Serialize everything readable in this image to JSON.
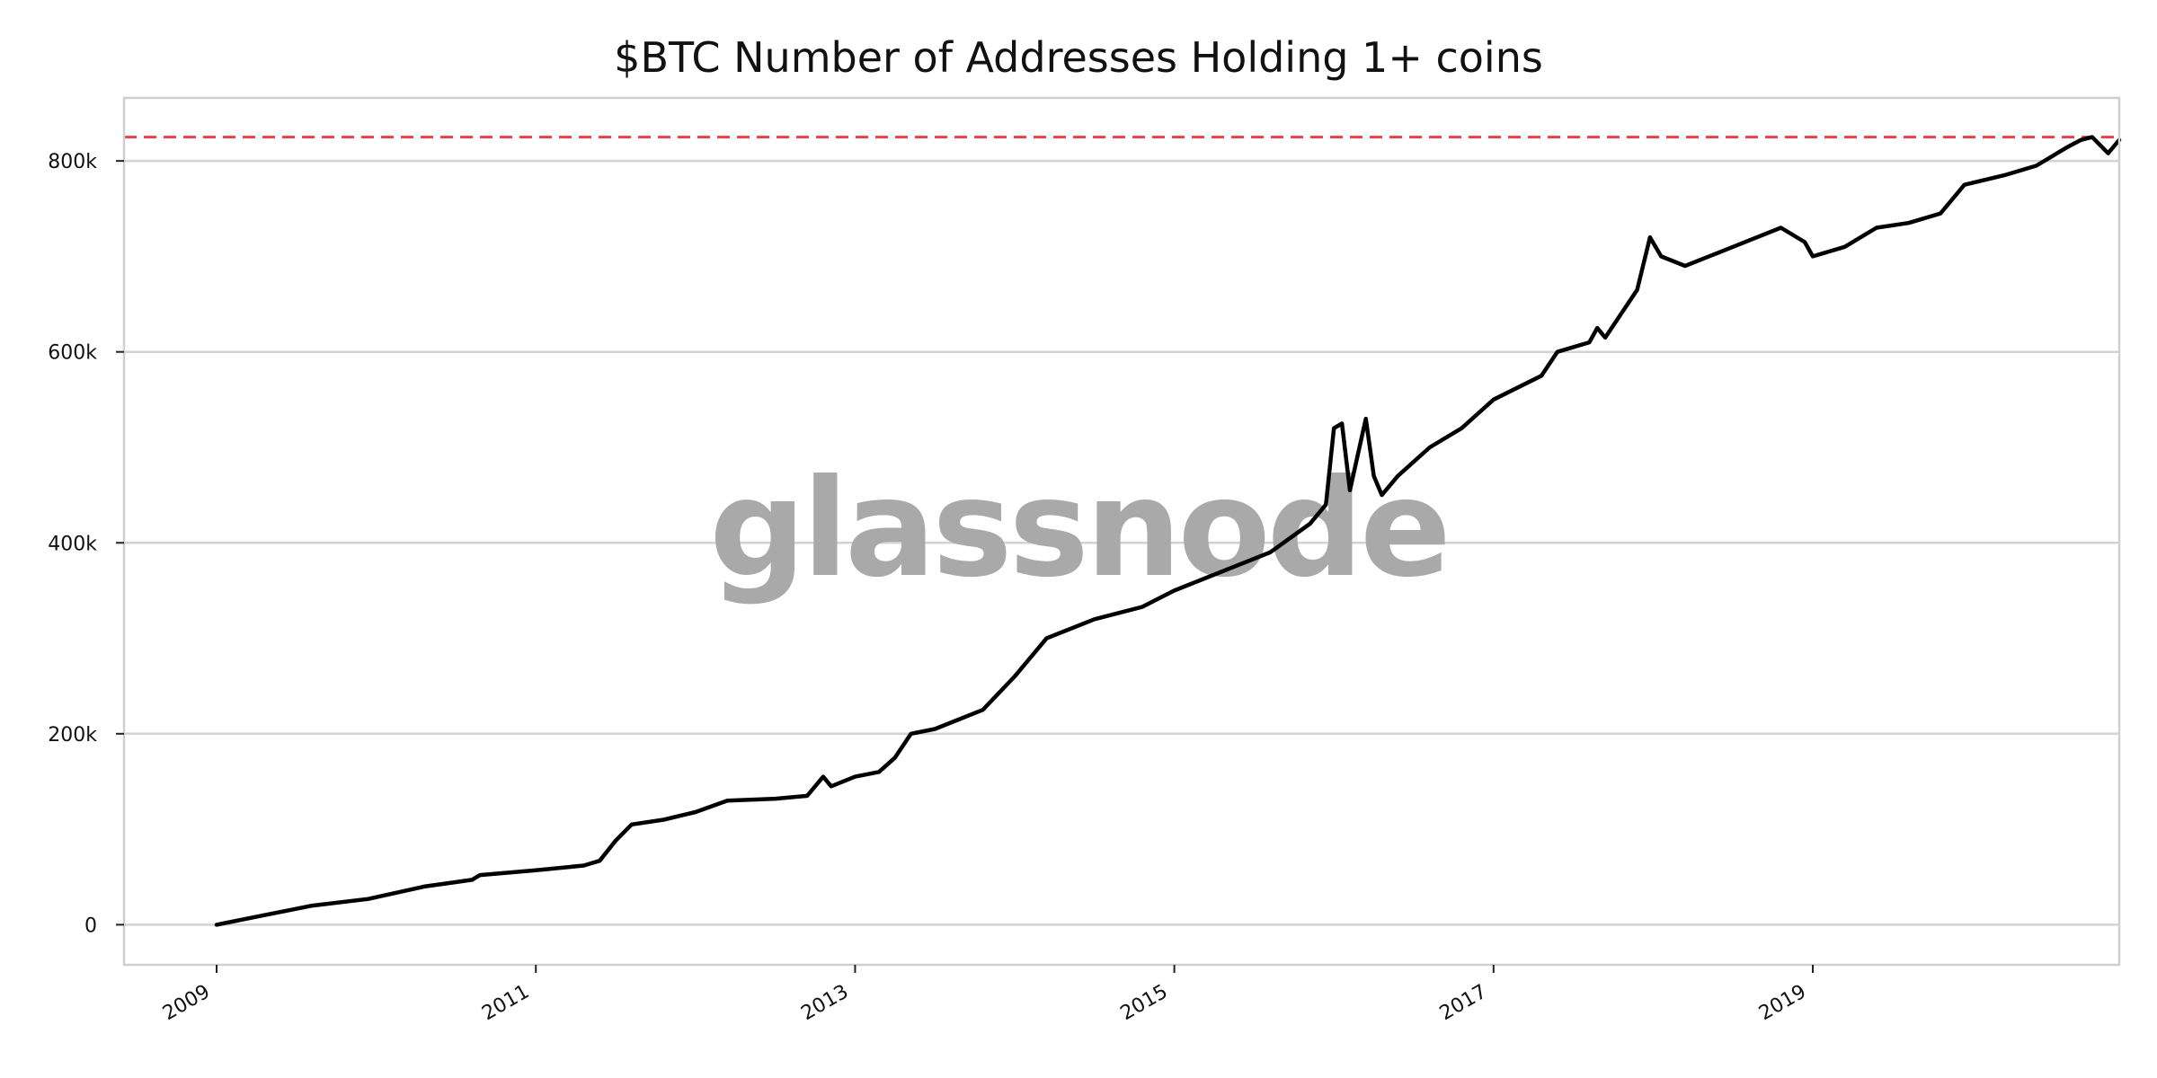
{
  "chart_data": {
    "type": "line",
    "title": "$BTC Number of Addresses Holding 1+ coins",
    "watermark": "glassnode",
    "xlabel": "",
    "ylabel": "",
    "x_ticks": [
      "2009",
      "2011",
      "2013",
      "2015",
      "2017",
      "2019"
    ],
    "y_ticks": [
      "0",
      "200k",
      "400k",
      "600k",
      "800k"
    ],
    "y_tick_values": [
      0,
      200000,
      400000,
      600000,
      800000
    ],
    "xlim": [
      2008.42,
      2020.92
    ],
    "ylim": [
      -42000,
      866000
    ],
    "grid": "horizontal",
    "line_color": "#000000",
    "reference_line": {
      "value": 825000,
      "color": "#e8414e",
      "style": "dashed"
    },
    "series": [
      {
        "x": [
          2009.0,
          2009.3,
          2009.6,
          2009.95,
          2010.3,
          2010.6,
          2010.65,
          2011.0,
          2011.3,
          2011.4,
          2011.5,
          2011.6,
          2011.8,
          2012.0,
          2012.2,
          2012.5,
          2012.7,
          2012.8,
          2012.85,
          2013.0,
          2013.15,
          2013.25,
          2013.35,
          2013.5,
          2013.65,
          2013.8,
          2014.0,
          2014.2,
          2014.5,
          2014.8,
          2015.0,
          2015.3,
          2015.6,
          2015.85,
          2015.95,
          2016.0,
          2016.05,
          2016.1,
          2016.2,
          2016.25,
          2016.3,
          2016.4,
          2016.6,
          2016.8,
          2017.0,
          2017.3,
          2017.4,
          2017.6,
          2017.65,
          2017.7,
          2017.9,
          2017.98,
          2018.05,
          2018.2,
          2018.5,
          2018.8,
          2018.95,
          2019.0,
          2019.2,
          2019.4,
          2019.6,
          2019.8,
          2019.95,
          2020.2,
          2020.4,
          2020.6,
          2020.68,
          2020.75,
          2020.85,
          2020.92
        ],
        "y": [
          0,
          10000,
          20000,
          27000,
          40000,
          47000,
          52000,
          57000,
          62000,
          67000,
          88000,
          105000,
          110000,
          118000,
          130000,
          132000,
          135000,
          155000,
          145000,
          155000,
          160000,
          175000,
          200000,
          205000,
          215000,
          225000,
          260000,
          300000,
          320000,
          333000,
          350000,
          370000,
          390000,
          420000,
          440000,
          520000,
          525000,
          455000,
          530000,
          470000,
          450000,
          470000,
          500000,
          520000,
          550000,
          575000,
          600000,
          610000,
          625000,
          615000,
          665000,
          720000,
          700000,
          690000,
          710000,
          730000,
          715000,
          700000,
          710000,
          730000,
          735000,
          745000,
          775000,
          785000,
          795000,
          815000,
          822000,
          825000,
          808000,
          822000
        ]
      }
    ]
  }
}
